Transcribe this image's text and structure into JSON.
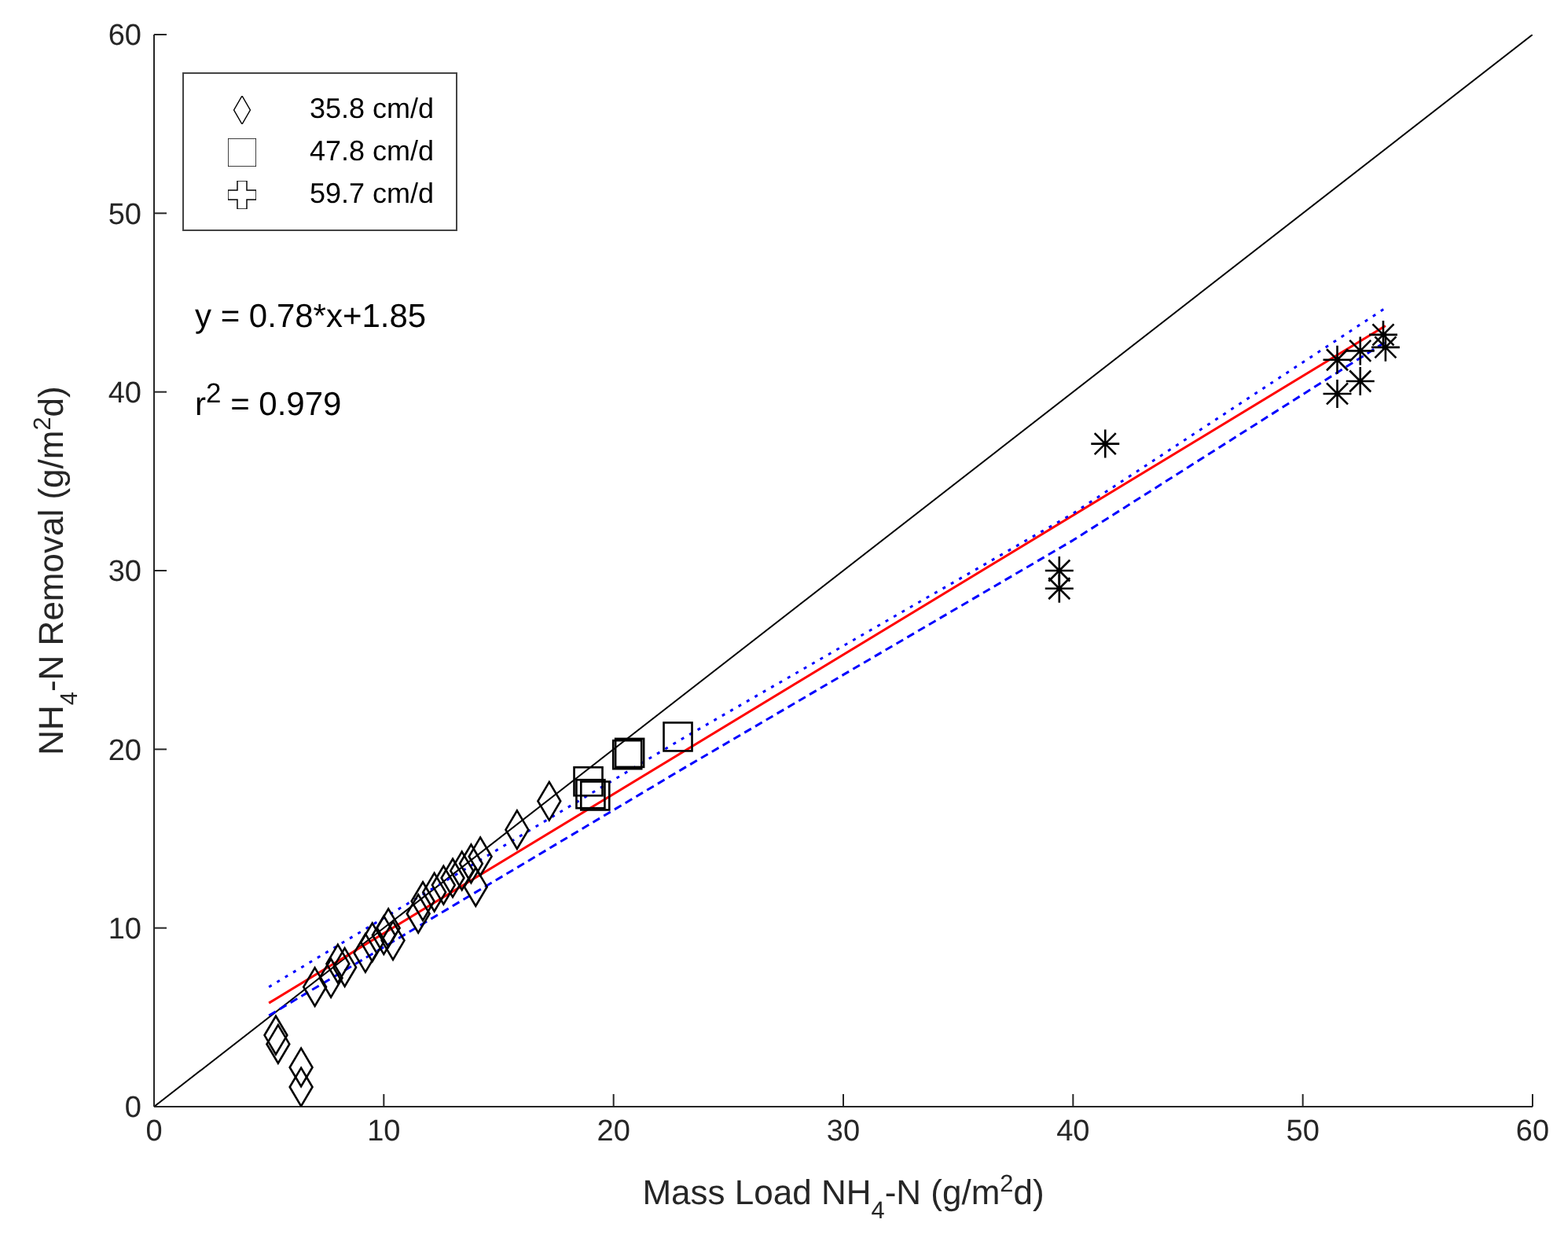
{
  "chart_data": {
    "type": "scatter",
    "xlabel": "Mass Load NH$_{4}$-N (g/m$^{2}$d)",
    "ylabel": "NH$_{4}$-N Removal (g/m$^{2}$d)",
    "xlim": [
      0,
      60
    ],
    "ylim": [
      0,
      60
    ],
    "xticks": [
      0,
      10,
      20,
      30,
      40,
      50,
      60
    ],
    "yticks": [
      0,
      10,
      20,
      30,
      40,
      50,
      60
    ],
    "grid": false,
    "legend": "top left",
    "annotations": [
      "y = 0.78*x+1.85",
      "r$^{2}$ = 0.979"
    ],
    "series": [
      {
        "name": "35.8 cm/d",
        "marker": "diamond",
        "color": "#000000",
        "x": [
          5.3,
          5.4,
          6.4,
          6.4,
          7,
          7.7,
          8,
          8.3,
          9.2,
          9.5,
          10,
          10.2,
          10.4,
          11.5,
          11.7,
          12.2,
          12.6,
          13,
          13.4,
          13.8,
          14,
          14.2,
          15.8,
          17.2
        ],
        "values": [
          4,
          3.5,
          2.2,
          1.1,
          6.7,
          7.2,
          8,
          7.8,
          8.6,
          9.2,
          9.6,
          10,
          9.3,
          10.8,
          11.5,
          12,
          12.4,
          12.8,
          13.2,
          13.6,
          12.3,
          14,
          15.5,
          17.1
        ]
      },
      {
        "name": "47.8 cm/d",
        "marker": "square",
        "color": "#000000",
        "x": [
          18.9,
          19,
          19.2,
          20.6,
          20.7,
          22.8
        ],
        "values": [
          18.2,
          17.5,
          17.4,
          19.7,
          19.8,
          20.7
        ]
      },
      {
        "name": "59.7 cm/d",
        "marker": "cross",
        "color": "#000000",
        "x": [
          39.4,
          39.4,
          41.4,
          51.5,
          51.5,
          52.5,
          52.5,
          53.5,
          53.6
        ],
        "values": [
          30,
          29,
          37.1,
          41.8,
          39.9,
          42.3,
          40.6,
          43.2,
          42.5
        ]
      },
      {
        "type": "line",
        "color": "#000000",
        "line_style": "solid",
        "x": [
          0,
          60
        ],
        "values": [
          0,
          60
        ]
      },
      {
        "type": "line",
        "color": "#ff0000",
        "line_style": "solid",
        "x": [
          5,
          53.6
        ],
        "values": [
          5.8,
          43.7
        ]
      },
      {
        "type": "line",
        "color": "#0000ff",
        "line_style": "dotted",
        "x": [
          5,
          23,
          40,
          53.6
        ],
        "values": [
          6.7,
          20.6,
          33.2,
          44.7
        ]
      },
      {
        "type": "line",
        "color": "#0000ff",
        "line_style": "dashed",
        "x": [
          5,
          23,
          40,
          53.6
        ],
        "values": [
          5.1,
          18.9,
          31.7,
          42.8
        ]
      }
    ]
  }
}
